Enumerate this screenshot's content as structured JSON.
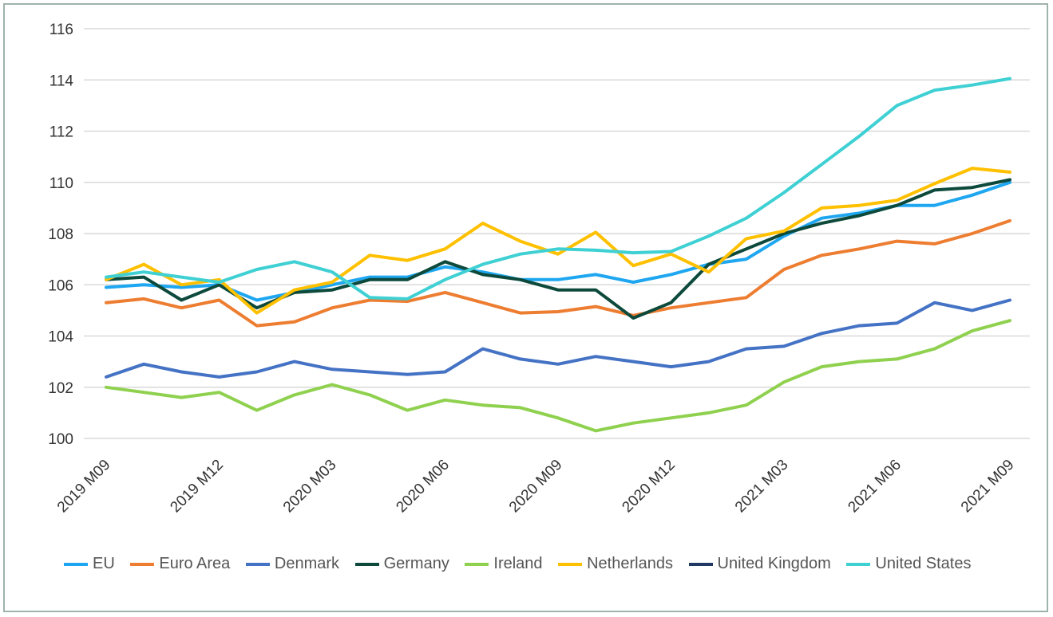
{
  "chart_data": {
    "type": "line",
    "categories": [
      "2019 M09",
      null,
      null,
      "2019 M12",
      null,
      null,
      "2020 M03",
      null,
      null,
      "2020 M06",
      null,
      null,
      "2020 M09",
      null,
      null,
      "2020 M12",
      null,
      null,
      "2021 M03",
      null,
      null,
      "2021 M06",
      null,
      null,
      "2021 M09"
    ],
    "ylim": [
      100,
      116
    ],
    "yticks": [
      100,
      102,
      104,
      106,
      108,
      110,
      112,
      114,
      116
    ],
    "grid": true,
    "series": [
      {
        "name": "EU",
        "color": "#1ea7f0",
        "values": [
          105.9,
          106.0,
          105.9,
          106.0,
          105.4,
          105.7,
          106.0,
          106.3,
          106.3,
          106.7,
          106.5,
          106.2,
          106.2,
          106.4,
          106.1,
          106.4,
          106.8,
          107.0,
          107.9,
          108.6,
          108.8,
          109.1,
          109.1,
          109.5,
          110.0
        ]
      },
      {
        "name": "Euro Area",
        "color": "#ed7d31",
        "values": [
          105.3,
          105.45,
          105.1,
          105.4,
          104.4,
          104.55,
          105.1,
          105.4,
          105.35,
          105.7,
          105.3,
          104.9,
          104.95,
          105.15,
          104.8,
          105.1,
          105.3,
          105.5,
          106.6,
          107.15,
          107.4,
          107.7,
          107.6,
          108.0,
          108.5
        ]
      },
      {
        "name": "Denmark",
        "color": "#4472c4",
        "values": [
          102.4,
          102.9,
          102.6,
          102.4,
          102.6,
          103.0,
          102.7,
          102.6,
          102.5,
          102.6,
          103.5,
          103.1,
          102.9,
          103.2,
          103.0,
          102.8,
          103.0,
          103.5,
          103.6,
          104.1,
          104.4,
          104.5,
          105.3,
          105.0,
          105.4
        ]
      },
      {
        "name": "Germany",
        "color": "#0d4a3c",
        "values": [
          106.2,
          106.3,
          105.4,
          106.0,
          105.1,
          105.7,
          105.8,
          106.2,
          106.2,
          106.9,
          106.4,
          106.2,
          105.8,
          105.8,
          104.7,
          105.3,
          106.8,
          107.4,
          108.0,
          108.4,
          108.7,
          109.1,
          109.7,
          109.8,
          110.1
        ]
      },
      {
        "name": "Ireland",
        "color": "#8fd14f",
        "values": [
          102.0,
          101.8,
          101.6,
          101.8,
          101.1,
          101.7,
          102.1,
          101.7,
          101.1,
          101.5,
          101.3,
          101.2,
          100.8,
          100.3,
          100.6,
          100.8,
          101.0,
          101.3,
          102.2,
          102.8,
          103.0,
          103.1,
          103.5,
          104.2,
          104.6
        ]
      },
      {
        "name": "Netherlands",
        "color": "#ffc000",
        "values": [
          106.2,
          106.8,
          106.0,
          106.2,
          104.9,
          105.8,
          106.1,
          107.15,
          106.95,
          107.4,
          108.4,
          107.7,
          107.2,
          108.05,
          106.75,
          107.2,
          106.5,
          107.8,
          108.1,
          109.0,
          109.1,
          109.3,
          109.95,
          110.55,
          110.4
        ]
      },
      {
        "name": "United Kingdom",
        "color": "#1f3864",
        "values": [
          null,
          null,
          null,
          null,
          null,
          null,
          null,
          null,
          null,
          null,
          null,
          null,
          null,
          null,
          null,
          null,
          null,
          null,
          null,
          null,
          null,
          null,
          null,
          null,
          null
        ]
      },
      {
        "name": "United States",
        "color": "#3fd0d4",
        "values": [
          106.3,
          106.5,
          106.3,
          106.1,
          106.6,
          106.9,
          106.5,
          105.5,
          105.45,
          106.2,
          106.8,
          107.2,
          107.4,
          107.35,
          107.25,
          107.3,
          107.9,
          108.6,
          109.6,
          110.7,
          111.8,
          113.0,
          113.6,
          113.8,
          114.05
        ]
      }
    ]
  }
}
